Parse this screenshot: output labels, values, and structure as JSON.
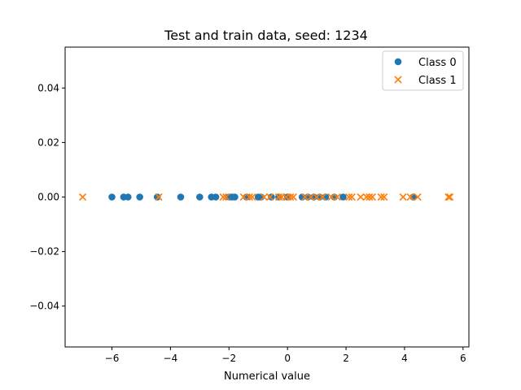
{
  "chart_data": {
    "type": "scatter",
    "title": "Test and train data, seed: 1234",
    "xlabel": "Numerical value",
    "ylabel": "",
    "xlim": [
      -7.6,
      6.2
    ],
    "ylim": [
      -0.055,
      0.055
    ],
    "x_ticks": [
      -6,
      -4,
      -2,
      0,
      2,
      4,
      6
    ],
    "x_tick_labels": [
      "−6",
      "−4",
      "−2",
      "0",
      "2",
      "4",
      "6"
    ],
    "y_ticks": [
      0.04,
      0.02,
      0.0,
      -0.02,
      -0.04
    ],
    "y_tick_labels": [
      "0.04",
      "0.02",
      "0.00",
      "−0.02",
      "−0.04"
    ],
    "grid": false,
    "legend_position": "top-right",
    "series": [
      {
        "name": "Class 0",
        "marker": "circle",
        "color": "#1f77b4",
        "x": [
          -6.0,
          -5.6,
          -5.45,
          -5.05,
          -4.45,
          -3.65,
          -3.0,
          -2.6,
          -2.45,
          -2.0,
          -1.9,
          -1.8,
          -1.4,
          -1.0,
          -0.9,
          -0.55,
          -0.3,
          0.0,
          0.5,
          0.7,
          0.9,
          1.1,
          1.3,
          1.6,
          1.9,
          4.3
        ],
        "y": [
          0,
          0,
          0,
          0,
          0,
          0,
          0,
          0,
          0,
          0,
          0,
          0,
          0,
          0,
          0,
          0,
          0,
          0,
          0,
          0,
          0,
          0,
          0,
          0,
          0,
          0
        ]
      },
      {
        "name": "Class 1",
        "marker": "x",
        "color": "#ff7f0e",
        "x": [
          -7.0,
          -4.4,
          -2.2,
          -2.1,
          -1.5,
          -1.3,
          -1.2,
          -0.8,
          -0.6,
          -0.3,
          -0.2,
          -0.05,
          0.1,
          0.2,
          0.6,
          0.8,
          1.0,
          1.2,
          1.5,
          1.7,
          2.1,
          2.2,
          2.5,
          2.7,
          2.8,
          2.9,
          3.2,
          3.3,
          3.95,
          4.2,
          4.45,
          5.5,
          5.55
        ],
        "y": [
          0,
          0,
          0,
          0,
          0,
          0,
          0,
          0,
          0,
          0,
          0,
          0,
          0,
          0,
          0,
          0,
          0,
          0,
          0,
          0,
          0,
          0,
          0,
          0,
          0,
          0,
          0,
          0,
          0,
          0,
          0,
          0,
          0
        ]
      }
    ]
  }
}
